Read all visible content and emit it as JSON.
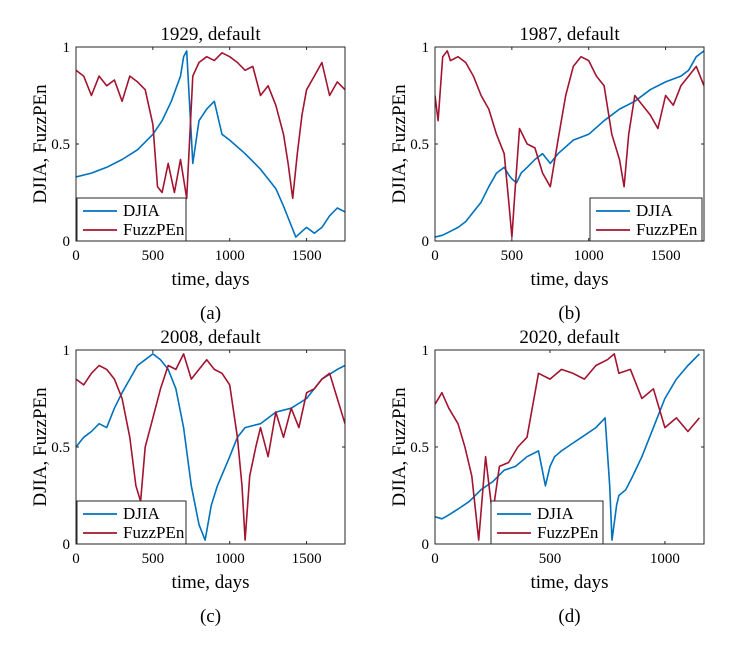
{
  "colors": {
    "djia": "#0072BD",
    "fuzzpen": "#A2142F"
  },
  "chart_data": [
    {
      "type": "line",
      "title": "1929, default",
      "caption": "(a)",
      "xlabel": "time, days",
      "ylabel": "DJIA, FuzzPEn",
      "xlim": [
        0,
        1750
      ],
      "ylim": [
        0,
        1
      ],
      "xticks": [
        0,
        500,
        1000,
        1500
      ],
      "yticks": [
        0,
        0.5,
        1
      ],
      "ytick_labels": [
        "0",
        "0.5",
        "1"
      ],
      "grid": false,
      "legend": {
        "position": "bottom-left",
        "entries": [
          "DJIA",
          "FuzzPEn"
        ]
      },
      "series": [
        {
          "name": "DJIA",
          "color": "#0072BD",
          "x": [
            0,
            100,
            200,
            300,
            400,
            500,
            560,
            620,
            680,
            700,
            720,
            760,
            800,
            850,
            900,
            950,
            1000,
            1100,
            1200,
            1300,
            1350,
            1400,
            1430,
            1470,
            1500,
            1550,
            1600,
            1650,
            1700,
            1750
          ],
          "y": [
            0.33,
            0.35,
            0.38,
            0.42,
            0.47,
            0.55,
            0.62,
            0.72,
            0.85,
            0.95,
            0.98,
            0.4,
            0.62,
            0.68,
            0.72,
            0.55,
            0.52,
            0.45,
            0.37,
            0.27,
            0.18,
            0.08,
            0.02,
            0.05,
            0.07,
            0.04,
            0.07,
            0.13,
            0.17,
            0.15
          ]
        },
        {
          "name": "FuzzPEn",
          "color": "#A2142F",
          "x": [
            0,
            50,
            100,
            150,
            200,
            250,
            300,
            350,
            400,
            450,
            500,
            530,
            560,
            600,
            640,
            680,
            720,
            760,
            800,
            850,
            900,
            950,
            1000,
            1050,
            1100,
            1150,
            1200,
            1250,
            1300,
            1350,
            1380,
            1410,
            1440,
            1470,
            1500,
            1550,
            1600,
            1650,
            1700,
            1750
          ],
          "y": [
            0.88,
            0.85,
            0.75,
            0.85,
            0.8,
            0.83,
            0.72,
            0.85,
            0.82,
            0.78,
            0.6,
            0.28,
            0.25,
            0.4,
            0.25,
            0.42,
            0.22,
            0.85,
            0.92,
            0.95,
            0.93,
            0.97,
            0.95,
            0.92,
            0.88,
            0.9,
            0.75,
            0.8,
            0.7,
            0.55,
            0.4,
            0.22,
            0.45,
            0.65,
            0.78,
            0.85,
            0.92,
            0.75,
            0.82,
            0.78
          ]
        }
      ]
    },
    {
      "type": "line",
      "title": "1987, default",
      "caption": "(b)",
      "xlabel": "time, days",
      "ylabel": "DJIA, FuzzPEn",
      "xlim": [
        0,
        1750
      ],
      "ylim": [
        0,
        1
      ],
      "xticks": [
        0,
        500,
        1000,
        1500
      ],
      "yticks": [
        0,
        0.5,
        1
      ],
      "ytick_labels": [
        "0",
        "0.5",
        "1"
      ],
      "grid": false,
      "legend": {
        "position": "bottom-right",
        "entries": [
          "DJIA",
          "FuzzPEn"
        ]
      },
      "series": [
        {
          "name": "DJIA",
          "color": "#0072BD",
          "x": [
            0,
            50,
            100,
            150,
            200,
            250,
            300,
            350,
            400,
            450,
            480,
            500,
            530,
            560,
            600,
            650,
            700,
            750,
            800,
            900,
            1000,
            1100,
            1200,
            1300,
            1400,
            1500,
            1600,
            1650,
            1700,
            1750
          ],
          "y": [
            0.02,
            0.03,
            0.05,
            0.07,
            0.1,
            0.15,
            0.2,
            0.28,
            0.35,
            0.38,
            0.34,
            0.32,
            0.3,
            0.35,
            0.38,
            0.42,
            0.45,
            0.4,
            0.45,
            0.52,
            0.55,
            0.62,
            0.68,
            0.72,
            0.78,
            0.82,
            0.85,
            0.88,
            0.95,
            0.98
          ]
        },
        {
          "name": "FuzzPEn",
          "color": "#A2142F",
          "x": [
            0,
            20,
            50,
            80,
            100,
            150,
            200,
            250,
            300,
            350,
            400,
            450,
            480,
            500,
            520,
            550,
            600,
            650,
            700,
            750,
            800,
            850,
            900,
            950,
            1000,
            1050,
            1100,
            1150,
            1200,
            1230,
            1260,
            1300,
            1350,
            1400,
            1450,
            1500,
            1550,
            1600,
            1650,
            1700,
            1750
          ],
          "y": [
            0.75,
            0.62,
            0.95,
            0.98,
            0.93,
            0.95,
            0.92,
            0.85,
            0.75,
            0.68,
            0.55,
            0.45,
            0.2,
            0.02,
            0.25,
            0.58,
            0.5,
            0.48,
            0.35,
            0.28,
            0.52,
            0.75,
            0.9,
            0.95,
            0.93,
            0.85,
            0.8,
            0.55,
            0.42,
            0.28,
            0.55,
            0.75,
            0.7,
            0.65,
            0.58,
            0.75,
            0.7,
            0.8,
            0.85,
            0.9,
            0.8
          ]
        }
      ]
    },
    {
      "type": "line",
      "title": "2008, default",
      "caption": "(c)",
      "xlabel": "time, days",
      "ylabel": "DJIA, FuzzPEn",
      "xlim": [
        0,
        1750
      ],
      "ylim": [
        0,
        1
      ],
      "xticks": [
        0,
        500,
        1000,
        1500
      ],
      "yticks": [
        0,
        0.5,
        1
      ],
      "ytick_labels": [
        "0",
        "0.5",
        "1"
      ],
      "grid": false,
      "legend": {
        "position": "bottom-left",
        "entries": [
          "DJIA",
          "FuzzPEn"
        ]
      },
      "series": [
        {
          "name": "DJIA",
          "color": "#0072BD",
          "x": [
            0,
            50,
            100,
            150,
            200,
            250,
            300,
            350,
            400,
            450,
            500,
            550,
            600,
            650,
            700,
            750,
            800,
            840,
            880,
            920,
            1000,
            1050,
            1100,
            1200,
            1300,
            1400,
            1500,
            1600,
            1700,
            1750
          ],
          "y": [
            0.5,
            0.55,
            0.58,
            0.62,
            0.6,
            0.7,
            0.78,
            0.85,
            0.92,
            0.95,
            0.98,
            0.95,
            0.9,
            0.8,
            0.6,
            0.3,
            0.1,
            0.02,
            0.2,
            0.3,
            0.45,
            0.55,
            0.6,
            0.62,
            0.68,
            0.7,
            0.75,
            0.85,
            0.9,
            0.92
          ]
        },
        {
          "name": "FuzzPEn",
          "color": "#A2142F",
          "x": [
            0,
            50,
            100,
            150,
            200,
            250,
            300,
            350,
            390,
            420,
            450,
            500,
            550,
            600,
            650,
            700,
            750,
            800,
            850,
            900,
            950,
            1000,
            1050,
            1080,
            1100,
            1130,
            1170,
            1200,
            1250,
            1300,
            1350,
            1400,
            1450,
            1500,
            1550,
            1600,
            1650,
            1700,
            1750
          ],
          "y": [
            0.85,
            0.82,
            0.88,
            0.92,
            0.9,
            0.85,
            0.75,
            0.55,
            0.3,
            0.22,
            0.5,
            0.65,
            0.8,
            0.92,
            0.9,
            0.98,
            0.85,
            0.9,
            0.95,
            0.9,
            0.88,
            0.82,
            0.55,
            0.3,
            0.02,
            0.35,
            0.5,
            0.6,
            0.45,
            0.68,
            0.55,
            0.7,
            0.6,
            0.78,
            0.8,
            0.85,
            0.88,
            0.75,
            0.62
          ]
        }
      ]
    },
    {
      "type": "line",
      "title": "2020, default",
      "caption": "(d)",
      "xlabel": "time, days",
      "ylabel": "DJIA, FuzzPEn",
      "xlim": [
        0,
        1170
      ],
      "ylim": [
        0,
        1
      ],
      "xticks": [
        0,
        500,
        1000
      ],
      "yticks": [
        0,
        0.5,
        1
      ],
      "ytick_labels": [
        "0",
        "0.5",
        "1"
      ],
      "grid": false,
      "legend": {
        "position": "bottom-right",
        "entries": [
          "DJIA",
          "FuzzPEn"
        ]
      },
      "series": [
        {
          "name": "DJIA",
          "color": "#0072BD",
          "x": [
            0,
            30,
            60,
            100,
            150,
            200,
            250,
            300,
            350,
            400,
            450,
            480,
            500,
            520,
            550,
            600,
            650,
            700,
            740,
            760,
            770,
            790,
            800,
            830,
            860,
            900,
            950,
            1000,
            1050,
            1100,
            1150
          ],
          "y": [
            0.14,
            0.13,
            0.15,
            0.18,
            0.22,
            0.28,
            0.32,
            0.38,
            0.4,
            0.45,
            0.48,
            0.3,
            0.4,
            0.45,
            0.48,
            0.52,
            0.56,
            0.6,
            0.65,
            0.3,
            0.02,
            0.2,
            0.25,
            0.28,
            0.35,
            0.45,
            0.6,
            0.75,
            0.85,
            0.92,
            0.98
          ]
        },
        {
          "name": "FuzzPEn",
          "color": "#A2142F",
          "x": [
            0,
            30,
            60,
            100,
            130,
            160,
            190,
            220,
            250,
            280,
            320,
            360,
            400,
            450,
            500,
            550,
            600,
            650,
            700,
            750,
            780,
            800,
            850,
            900,
            950,
            1000,
            1050,
            1100,
            1150
          ],
          "y": [
            0.72,
            0.78,
            0.7,
            0.62,
            0.5,
            0.35,
            0.02,
            0.45,
            0.15,
            0.4,
            0.42,
            0.5,
            0.55,
            0.88,
            0.85,
            0.9,
            0.88,
            0.85,
            0.92,
            0.95,
            0.98,
            0.88,
            0.9,
            0.75,
            0.8,
            0.6,
            0.65,
            0.58,
            0.65
          ]
        }
      ]
    }
  ]
}
